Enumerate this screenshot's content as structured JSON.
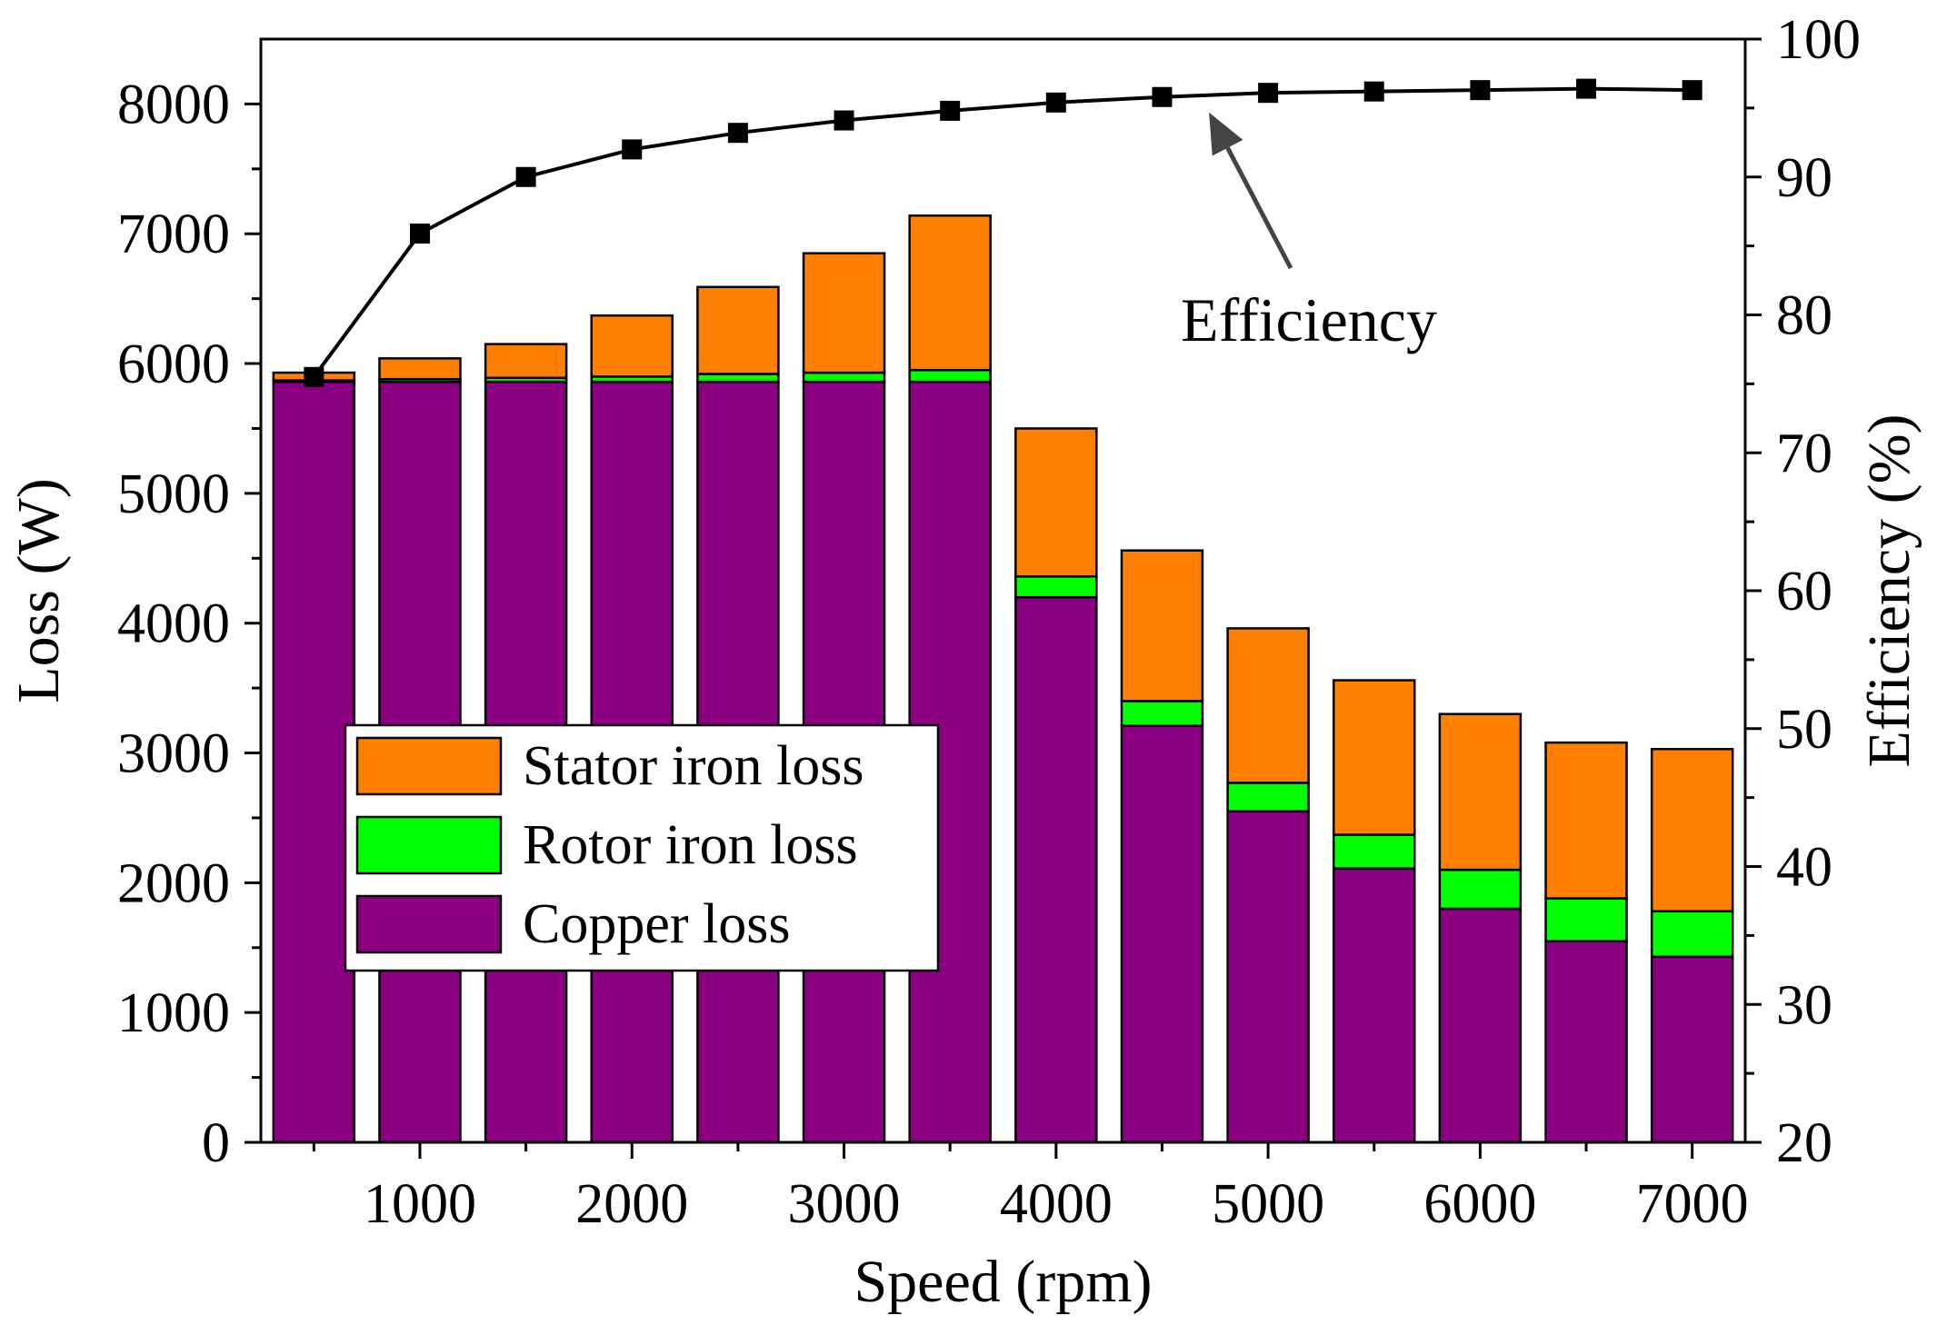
{
  "chart_data": {
    "type": "bar",
    "stacked": true,
    "xlabel": "Speed (rpm)",
    "ylabel": "Loss (W)",
    "y2label": "Efficiency (%)",
    "xlim": [
      250,
      7250
    ],
    "ylim": [
      0,
      8500
    ],
    "y2lim": [
      20,
      100
    ],
    "xticks": [
      1000,
      2000,
      3000,
      4000,
      5000,
      6000,
      7000
    ],
    "xtick_labels": [
      "1000",
      "2000",
      "3000",
      "4000",
      "5000",
      "6000",
      "7000"
    ],
    "yticks": [
      0,
      1000,
      2000,
      3000,
      4000,
      5000,
      6000,
      7000,
      8000
    ],
    "ytick_labels": [
      "0",
      "1000",
      "2000",
      "3000",
      "4000",
      "5000",
      "6000",
      "7000",
      "8000"
    ],
    "y2ticks": [
      20,
      30,
      40,
      50,
      60,
      70,
      80,
      90,
      100
    ],
    "y2tick_labels": [
      "20",
      "30",
      "40",
      "50",
      "60",
      "70",
      "80",
      "90",
      "100"
    ],
    "x": [
      500,
      1000,
      1500,
      2000,
      2500,
      3000,
      3500,
      4000,
      4500,
      5000,
      5500,
      6000,
      6500,
      7000
    ],
    "series": [
      {
        "name": "Copper loss",
        "color": "#8B0080",
        "values": [
          5860,
          5860,
          5860,
          5860,
          5860,
          5860,
          5860,
          4200,
          3210,
          2550,
          2110,
          1800,
          1550,
          1430
        ]
      },
      {
        "name": "Rotor iron loss",
        "color": "#00FF00",
        "values": [
          10,
          20,
          30,
          40,
          60,
          70,
          90,
          160,
          190,
          220,
          260,
          300,
          330,
          350
        ]
      },
      {
        "name": "Stator iron loss",
        "color": "#FF8000",
        "values": [
          60,
          160,
          260,
          470,
          670,
          920,
          1190,
          1140,
          1160,
          1190,
          1190,
          1200,
          1200,
          1250
        ]
      }
    ],
    "efficiency": {
      "name": "Efficiency",
      "axis": "right",
      "color": "#000000",
      "marker": "square",
      "values": [
        75.5,
        85.9,
        90.0,
        92.0,
        93.2,
        94.1,
        94.8,
        95.4,
        95.8,
        96.1,
        96.2,
        96.3,
        96.4,
        96.3
      ]
    },
    "legend": {
      "position": "lower-left",
      "entries": [
        {
          "label": "Stator iron loss",
          "color": "#FF8000"
        },
        {
          "label": "Rotor iron loss",
          "color": "#00FF00"
        },
        {
          "label": "Copper loss",
          "color": "#8B0080"
        }
      ]
    },
    "annotations": [
      {
        "text": "Efficiency",
        "arrow_to_x": 4850,
        "arrow_to_y2": 96.0
      }
    ],
    "grid": false
  }
}
